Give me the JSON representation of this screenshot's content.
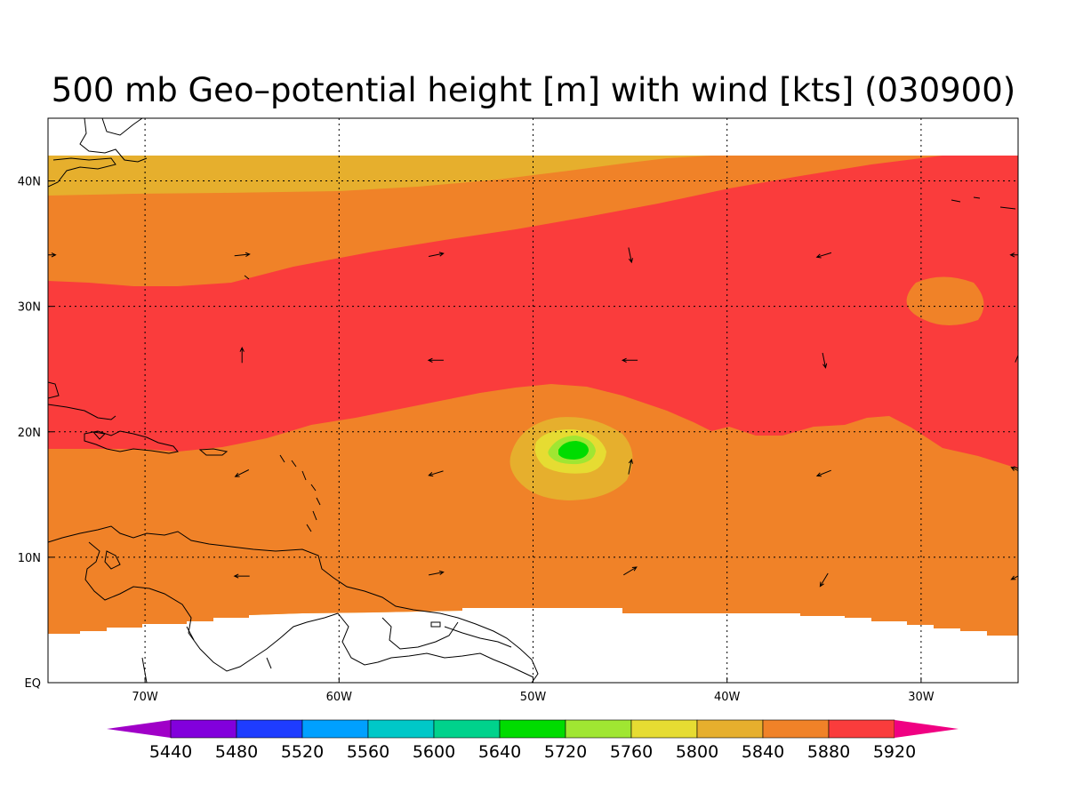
{
  "title": "500 mb Geo–potential height [m] with wind [kts] (030900)",
  "map": {
    "lon_range": [
      -75,
      -25
    ],
    "lat_range": [
      0,
      45
    ],
    "lon_ticks": [
      {
        "value": -70,
        "label": "70W"
      },
      {
        "value": -60,
        "label": "60W"
      },
      {
        "value": -50,
        "label": "50W"
      },
      {
        "value": -40,
        "label": "40W"
      },
      {
        "value": -30,
        "label": "30W"
      }
    ],
    "lat_ticks": [
      {
        "value": 40,
        "label": "40N"
      },
      {
        "value": 30,
        "label": "30N"
      },
      {
        "value": 20,
        "label": "20N"
      },
      {
        "value": 10,
        "label": "10N"
      },
      {
        "value": 0,
        "label": "EQ"
      }
    ],
    "grid": true,
    "data_lat_range": [
      3.5,
      42
    ]
  },
  "colorbar": {
    "levels": [
      "5440",
      "5480",
      "5520",
      "5560",
      "5600",
      "5640",
      "5720",
      "5760",
      "5800",
      "5840",
      "5880",
      "5920"
    ],
    "colors": [
      "#a000c8",
      "#8200dc",
      "#1e3cff",
      "#00a0ff",
      "#00c8c8",
      "#00d28c",
      "#00dc00",
      "#a0e632",
      "#e6dc32",
      "#e6af2d",
      "#f08228",
      "#fa3c3c",
      "#f00082"
    ]
  },
  "height_regions": [
    {
      "band": "5800-5840",
      "color": "#e6af2d"
    },
    {
      "band": "5840-5880",
      "color": "#f08228"
    },
    {
      "band": "5880-5920",
      "color": "#fa3c3c"
    },
    {
      "band": "5760-5800",
      "color": "#e6dc32"
    },
    {
      "band": "5720-5760",
      "color": "#a0e632"
    },
    {
      "band": "5640-5720",
      "color": "#00dc00"
    }
  ],
  "wind_vectors": [
    {
      "lon": -75,
      "lat": 34.1,
      "u": 1,
      "v": 0
    },
    {
      "lon": -65,
      "lat": 34.1,
      "u": 1,
      "v": 0.1
    },
    {
      "lon": -55,
      "lat": 34.1,
      "u": 1,
      "v": 0.2
    },
    {
      "lon": -45,
      "lat": 34.1,
      "u": 0.2,
      "v": -1
    },
    {
      "lon": -35,
      "lat": 34.1,
      "u": -1,
      "v": -0.3
    },
    {
      "lon": -25,
      "lat": 34.1,
      "u": -1,
      "v": 0
    },
    {
      "lon": -65,
      "lat": 26.1,
      "u": 0,
      "v": 1
    },
    {
      "lon": -55,
      "lat": 25.7,
      "u": -1,
      "v": 0
    },
    {
      "lon": -45,
      "lat": 25.7,
      "u": -1,
      "v": 0
    },
    {
      "lon": -35,
      "lat": 25.7,
      "u": 0.2,
      "v": -1
    },
    {
      "lon": -25,
      "lat": 26.1,
      "u": 0.4,
      "v": 1
    },
    {
      "lon": -65,
      "lat": 16.7,
      "u": -1,
      "v": -0.5
    },
    {
      "lon": -55,
      "lat": 16.7,
      "u": -1,
      "v": -0.3
    },
    {
      "lon": -45,
      "lat": 17.2,
      "u": 0.2,
      "v": 1
    },
    {
      "lon": -35,
      "lat": 16.7,
      "u": -1,
      "v": -0.4
    },
    {
      "lon": -25,
      "lat": 16.9,
      "u": -1,
      "v": 0.5
    },
    {
      "lon": -65,
      "lat": 8.5,
      "u": -1,
      "v": 0
    },
    {
      "lon": -55,
      "lat": 8.7,
      "u": 1,
      "v": 0.2
    },
    {
      "lon": -45,
      "lat": 8.9,
      "u": 1,
      "v": 0.6
    },
    {
      "lon": -35,
      "lat": 8.2,
      "u": -0.6,
      "v": -1
    },
    {
      "lon": -25,
      "lat": 8.5,
      "u": -1,
      "v": -0.5
    }
  ]
}
